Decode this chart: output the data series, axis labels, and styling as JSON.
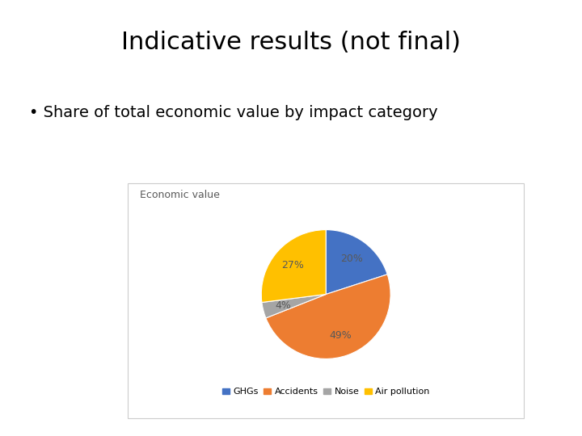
{
  "title": "Indicative results (not final)",
  "bullet": "Share of total economic value by impact category",
  "chart_title": "Economic value",
  "labels": [
    "GHGs",
    "Accidents",
    "Noise",
    "Air pollution"
  ],
  "values": [
    20,
    49,
    4,
    27
  ],
  "colors": [
    "#4472C4",
    "#ED7D31",
    "#A5A5A5",
    "#FFC000"
  ],
  "pct_labels": [
    "20%",
    "49%",
    "4%",
    "27%"
  ],
  "background": "#FFFFFF",
  "title_fontsize": 22,
  "bullet_fontsize": 14,
  "chart_title_fontsize": 9,
  "legend_fontsize": 8,
  "pct_fontsize": 9
}
